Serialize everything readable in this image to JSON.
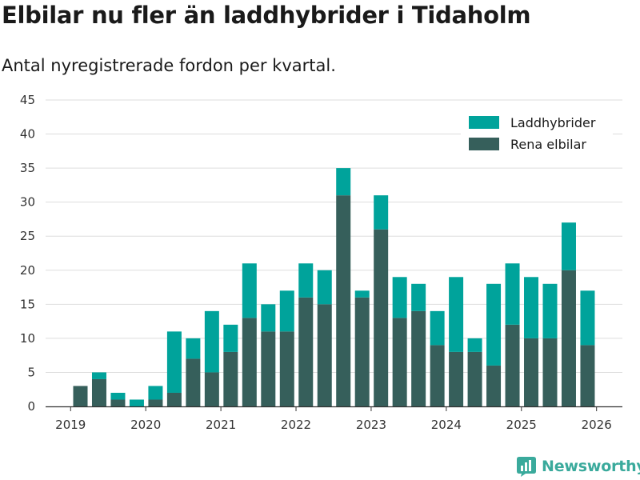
{
  "title": "Elbilar nu fler än laddhybrider i Tidaholm",
  "subtitle": "Antal nyregistrerade fordon per kvartal.",
  "brand": "Newsworthy",
  "colors": {
    "laddhybrider": "#00a39b",
    "elbilar": "#365f5b",
    "grid": "#dddddd",
    "axis": "#333333",
    "brand": "#3aaa9c"
  },
  "chart_data": {
    "type": "bar",
    "stacked": true,
    "categories": [
      "2019 Q1",
      "2019 Q2",
      "2019 Q3",
      "2019 Q4",
      "2020 Q1",
      "2020 Q2",
      "2020 Q3",
      "2020 Q4",
      "2021 Q1",
      "2021 Q2",
      "2021 Q3",
      "2021 Q4",
      "2022 Q1",
      "2022 Q2",
      "2022 Q3",
      "2022 Q4",
      "2023 Q1",
      "2023 Q2",
      "2023 Q3",
      "2023 Q4",
      "2024 Q1",
      "2024 Q2",
      "2024 Q3",
      "2024 Q4",
      "2025 Q1",
      "2025 Q2",
      "2025 Q3",
      "2025 Q4",
      "2026 Q1"
    ],
    "series": [
      {
        "name": "Rena elbilar",
        "color": "#365f5b",
        "values": [
          3,
          4,
          1,
          0,
          1,
          2,
          7,
          5,
          8,
          13,
          11,
          11,
          16,
          15,
          31,
          16,
          26,
          13,
          14,
          9,
          8,
          8,
          6,
          12,
          10,
          10,
          20,
          9,
          null
        ]
      },
      {
        "name": "Laddhybrider",
        "color": "#00a39b",
        "values": [
          0,
          1,
          1,
          1,
          2,
          9,
          3,
          9,
          4,
          8,
          4,
          6,
          5,
          5,
          4,
          1,
          5,
          6,
          4,
          5,
          11,
          2,
          12,
          9,
          9,
          8,
          7,
          8,
          null
        ]
      }
    ],
    "legend_order": [
      "Laddhybrider",
      "Rena elbilar"
    ],
    "legend_position": "top-right",
    "x_ticks": [
      "2019",
      "2020",
      "2021",
      "2022",
      "2023",
      "2024",
      "2025",
      "2026"
    ],
    "y_ticks": [
      0,
      5,
      10,
      15,
      20,
      25,
      30,
      35,
      40,
      45
    ],
    "ylim": [
      0,
      45
    ],
    "xlabel": "",
    "ylabel": ""
  }
}
